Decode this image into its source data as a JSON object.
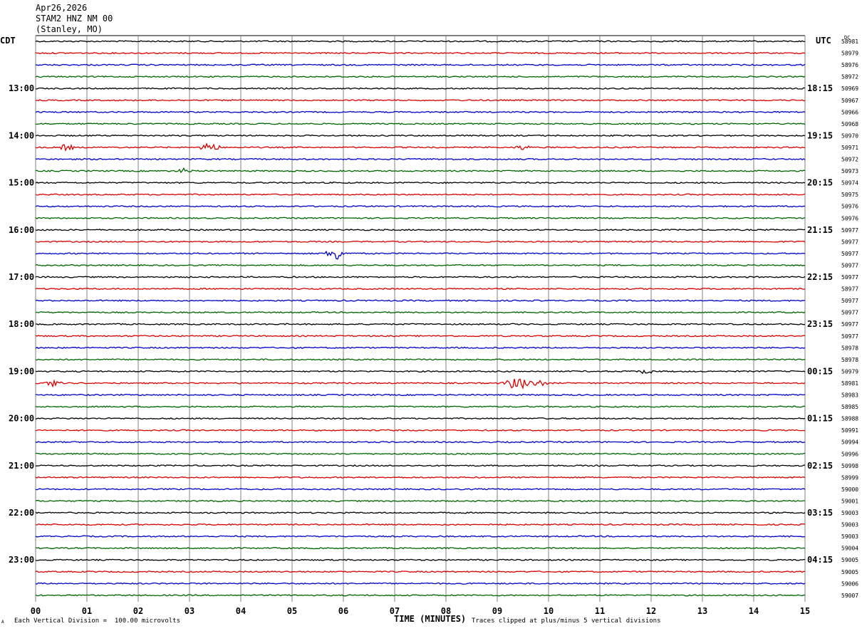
{
  "header": {
    "date": "Apr26,2026",
    "station": "STAM2 HNZ NM 00",
    "location": "(Stanley, MO)"
  },
  "left_tz": "CDT",
  "right_tz": "UTC",
  "dc_label": "DC",
  "footer": {
    "scale_note": "Each Vertical Division =  100.00 microvolts",
    "x_label": "TIME (MINUTES)",
    "clip_note": "Traces clipped at plus/minus 5 vertical divisions",
    "corner_mark": "A"
  },
  "colors": {
    "trace_cycle": [
      "#000000",
      "#dd0000",
      "#0000cc",
      "#006600"
    ],
    "grid": "#808080"
  },
  "chart_data": {
    "type": "line",
    "title": "",
    "xlabel": "TIME (MINUTES)",
    "xlim": [
      0,
      15
    ],
    "x_ticks": [
      "00",
      "01",
      "02",
      "03",
      "04",
      "05",
      "06",
      "07",
      "08",
      "09",
      "10",
      "11",
      "12",
      "13",
      "14",
      "15"
    ],
    "left_hour_labels": [
      "13:00",
      "14:00",
      "15:00",
      "16:00",
      "17:00",
      "18:00",
      "19:00",
      "20:00",
      "21:00",
      "22:00",
      "23:00"
    ],
    "right_hour_labels": [
      "18:15",
      "19:15",
      "20:15",
      "21:15",
      "22:15",
      "23:15",
      "00:15",
      "01:15",
      "02:15",
      "03:15",
      "04:15"
    ],
    "dc_offsets": [
      "58981",
      "58979",
      "58976",
      "58972",
      "50969",
      "50967",
      "50966",
      "50968",
      "50970",
      "50971",
      "50972",
      "50973",
      "50974",
      "50975",
      "50976",
      "50976",
      "50977",
      "50977",
      "50977",
      "50977",
      "50977",
      "58977",
      "50977",
      "50977",
      "50977",
      "50977",
      "58978",
      "58978",
      "50979",
      "58981",
      "58983",
      "58985",
      "58988",
      "50991",
      "50994",
      "50996",
      "50998",
      "58999",
      "59000",
      "59001",
      "59003",
      "59003",
      "59003",
      "59004",
      "59005",
      "59005",
      "59006",
      "59007"
    ],
    "events": [
      {
        "trace": 9,
        "minute": 0.6,
        "amp": 5
      },
      {
        "trace": 9,
        "minute": 3.4,
        "amp": 9
      },
      {
        "trace": 9,
        "minute": 9.5,
        "amp": 4
      },
      {
        "trace": 11,
        "minute": 2.9,
        "amp": 4
      },
      {
        "trace": 18,
        "minute": 5.85,
        "amp": 11
      },
      {
        "trace": 28,
        "minute": 11.9,
        "amp": 4
      },
      {
        "trace": 29,
        "minute": 0.35,
        "amp": 5
      },
      {
        "trace": 29,
        "minute": 9.3,
        "amp": 8
      },
      {
        "trace": 29,
        "minute": 9.5,
        "amp": 9
      },
      {
        "trace": 29,
        "minute": 9.8,
        "amp": 6
      }
    ]
  }
}
